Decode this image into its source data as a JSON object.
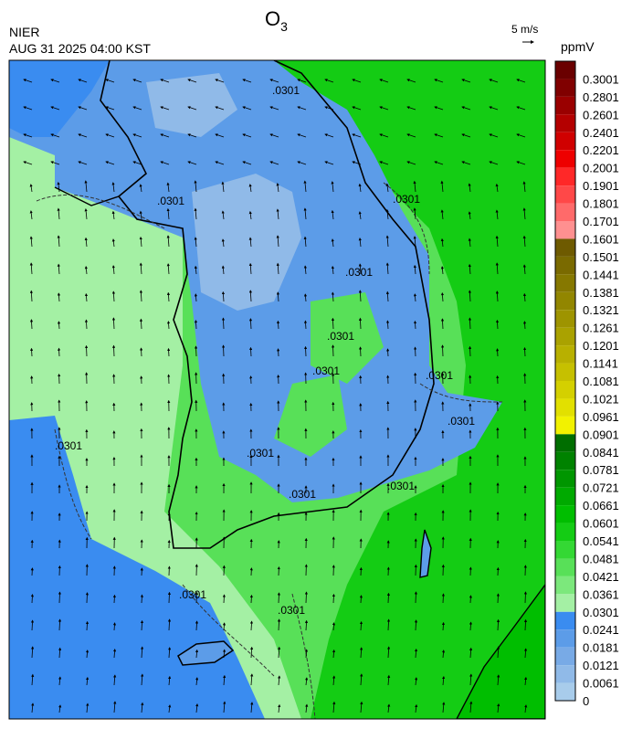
{
  "header": {
    "title": "O",
    "title_subscript": "3",
    "agency": "NIER",
    "datetime": "AUG 31 2025 04:00 KST",
    "wind_scale": "5 m/s"
  },
  "colorbar": {
    "unit": "ppmV",
    "levels": [
      0.3001,
      0.2801,
      0.2601,
      0.2401,
      0.2201,
      0.2001,
      0.1901,
      0.1801,
      0.1701,
      0.1601,
      0.1501,
      0.1441,
      0.1381,
      0.1321,
      0.1261,
      0.1201,
      0.1141,
      0.1081,
      0.1021,
      0.0961,
      0.0901,
      0.0841,
      0.0781,
      0.0721,
      0.0661,
      0.0601,
      0.0541,
      0.0481,
      0.0421,
      0.0361,
      0.0301,
      0.0241,
      0.0181,
      0.0121,
      0.0061,
      0
    ],
    "colors": [
      "#6a0000",
      "#800000",
      "#9a0000",
      "#b40000",
      "#d00000",
      "#ee0000",
      "#ff2828",
      "#ff4848",
      "#ff6a6a",
      "#ff9090",
      "#6e5a00",
      "#7a6a00",
      "#867800",
      "#928600",
      "#9e9400",
      "#aaa200",
      "#b8b000",
      "#c6c000",
      "#d4d000",
      "#e2e000",
      "#f2f200",
      "#006e00",
      "#008200",
      "#009600",
      "#00aa00",
      "#00be00",
      "#14cc14",
      "#34d834",
      "#58e058",
      "#7ce87c",
      "#a4f0a4",
      "#3a8cf0",
      "#5c9ce8",
      "#78aae6",
      "#90bae8",
      "#a8cceb"
    ]
  },
  "contour_labels": [
    ".0301",
    ".0301",
    ".0301",
    ".0301",
    ".0301",
    ".0301",
    ".0301",
    ".0301",
    ".0301",
    ".0301",
    ".0301",
    ".0301",
    ".0301",
    ".0301"
  ]
}
